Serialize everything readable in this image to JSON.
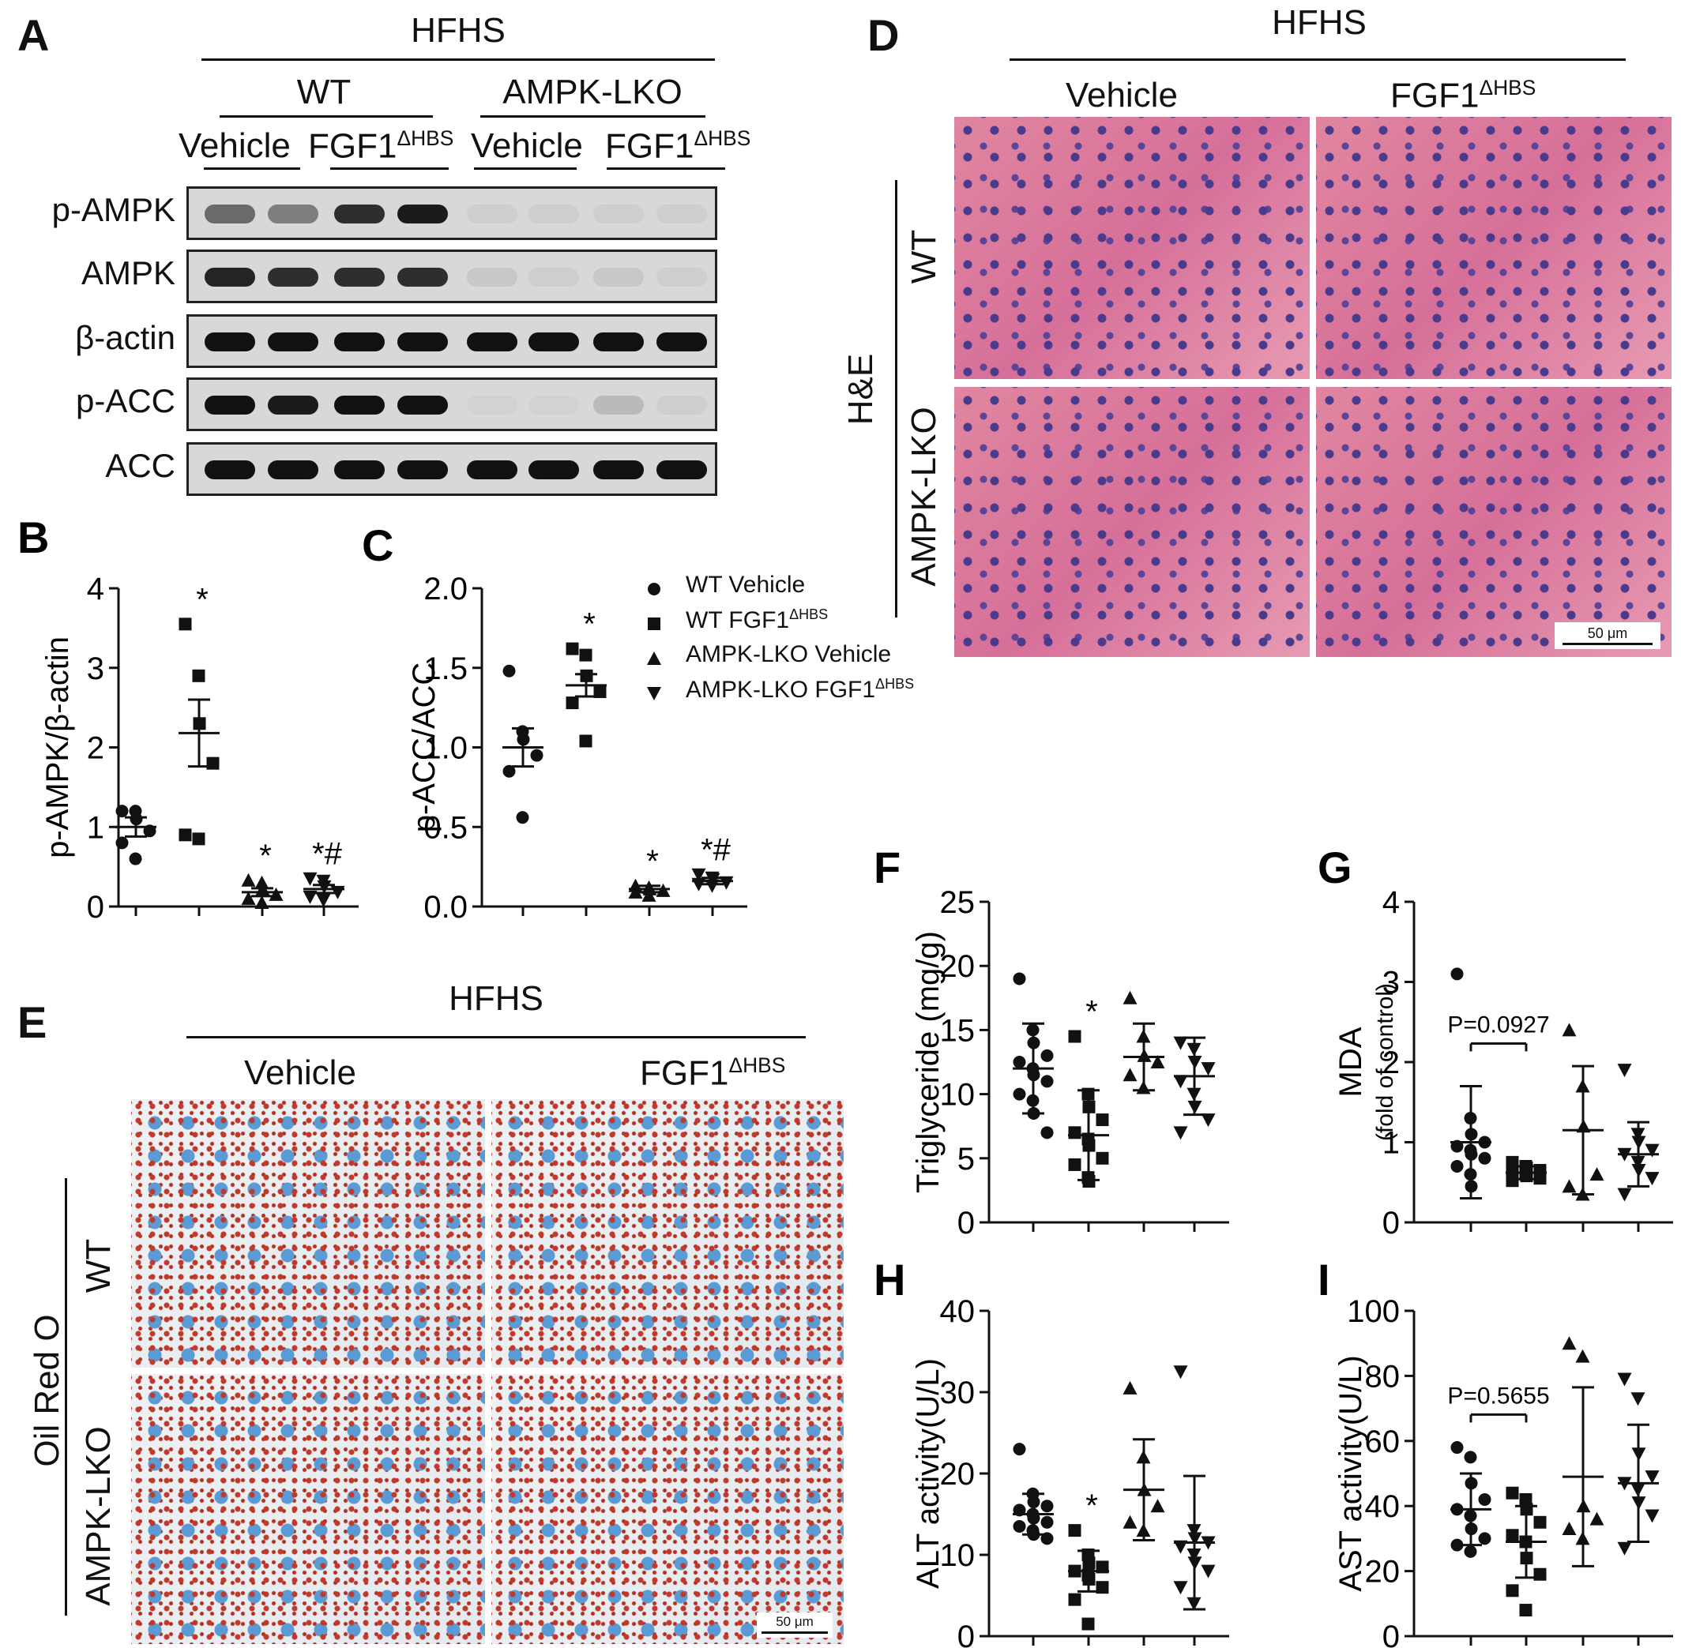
{
  "panel_a": {
    "letter": "A",
    "header": "HFHS",
    "group_wt": "WT",
    "group_lko": "AMPK-LKO",
    "treat_vehicle": "Vehicle",
    "treat_fgf1": "FGF1",
    "treat_fgf1_sup": "ΔHBS",
    "rows": [
      "p-AMPK",
      "AMPK",
      "β-actin",
      "p-ACC",
      "ACC"
    ],
    "band_intensity": [
      [
        0.55,
        0.45,
        0.85,
        0.95,
        0.05,
        0.05,
        0.05,
        0.05
      ],
      [
        0.9,
        0.85,
        0.85,
        0.85,
        0.08,
        0.05,
        0.08,
        0.05
      ],
      [
        1,
        1,
        1,
        1,
        1,
        1,
        1,
        1
      ],
      [
        1,
        0.95,
        1,
        1,
        0.03,
        0.03,
        0.15,
        0.05
      ],
      [
        1,
        1,
        1,
        1,
        1,
        1,
        1,
        1
      ]
    ]
  },
  "panel_d": {
    "letter": "D",
    "header": "HFHS",
    "col_vehicle": "Vehicle",
    "col_fgf1": "FGF1",
    "col_fgf1_sup": "ΔHBS",
    "stain": "H&E",
    "row_wt": "WT",
    "row_lko": "AMPK-LKO",
    "scale": "50 μm"
  },
  "panel_e": {
    "letter": "E",
    "header": "HFHS",
    "col_vehicle": "Vehicle",
    "col_fgf1": "FGF1",
    "col_fgf1_sup": "ΔHBS",
    "stain": "Oil Red O",
    "row_wt": "WT",
    "row_lko": "AMPK-LKO",
    "scale": "50 μm"
  },
  "legend": {
    "items": [
      {
        "marker": "circle",
        "label": "WT Vehicle",
        "sup": ""
      },
      {
        "marker": "square",
        "label": "WT FGF1",
        "sup": "ΔHBS"
      },
      {
        "marker": "triangle-up",
        "label": "AMPK-LKO Vehicle",
        "sup": ""
      },
      {
        "marker": "triangle-down",
        "label": "AMPK-LKO FGF1",
        "sup": "ΔHBS"
      }
    ]
  },
  "chart_data": [
    {
      "panel": "B",
      "type": "scatter",
      "ylabel": "p-AMPK/β-actin",
      "ylim": [
        0,
        4
      ],
      "yticks": [
        "0",
        "1",
        "2",
        "3",
        "4"
      ],
      "groups": [
        {
          "marker": "circle",
          "mean": 1.0,
          "err": 0.12,
          "points": [
            1.2,
            1.2,
            1.1,
            0.95,
            0.8,
            0.6
          ],
          "mark": ""
        },
        {
          "marker": "square",
          "mean": 2.18,
          "err": 0.42,
          "points": [
            3.55,
            2.9,
            2.3,
            1.8,
            0.9,
            0.85
          ],
          "mark": "*"
        },
        {
          "marker": "triangle-up",
          "mean": 0.18,
          "err": 0.05,
          "points": [
            0.33,
            0.3,
            0.22,
            0.15,
            0.1,
            0.05
          ],
          "mark": "*"
        },
        {
          "marker": "triangle-down",
          "mean": 0.22,
          "err": 0.05,
          "points": [
            0.35,
            0.32,
            0.25,
            0.18,
            0.12,
            0.08
          ],
          "mark": "*#"
        }
      ]
    },
    {
      "panel": "C",
      "type": "scatter",
      "ylabel": "p-ACC/ACC",
      "ylim": [
        0,
        2.0
      ],
      "yticks": [
        "0.0",
        "0.5",
        "1.0",
        "1.5",
        "2.0"
      ],
      "groups": [
        {
          "marker": "circle",
          "mean": 1.0,
          "err": 0.12,
          "points": [
            1.48,
            1.1,
            1.05,
            0.95,
            0.85,
            0.56
          ],
          "mark": ""
        },
        {
          "marker": "square",
          "mean": 1.39,
          "err": 0.07,
          "points": [
            1.62,
            1.58,
            1.45,
            1.35,
            1.28,
            1.04
          ],
          "mark": "*"
        },
        {
          "marker": "triangle-up",
          "mean": 0.11,
          "err": 0.02,
          "points": [
            0.13,
            0.12,
            0.11,
            0.1,
            0.09,
            0.07
          ],
          "mark": "*"
        },
        {
          "marker": "triangle-down",
          "mean": 0.16,
          "err": 0.02,
          "points": [
            0.2,
            0.18,
            0.17,
            0.15,
            0.14,
            0.13
          ],
          "mark": "*#"
        }
      ]
    },
    {
      "panel": "F",
      "type": "scatter",
      "ylabel": "Triglyceride (mg/g)",
      "ylim": [
        0,
        25
      ],
      "yticks": [
        "0",
        "5",
        "10",
        "15",
        "20",
        "25"
      ],
      "groups": [
        {
          "marker": "circle",
          "mean": 12.0,
          "err": 3.5,
          "points": [
            19.0,
            15.0,
            14.0,
            13.0,
            12.5,
            12.0,
            11.5,
            11.0,
            10.0,
            9.5,
            8.5,
            7.0
          ],
          "mark": ""
        },
        {
          "marker": "square",
          "mean": 6.8,
          "err": 3.5,
          "points": [
            14.5,
            10.0,
            9.0,
            8.0,
            7.0,
            6.5,
            6.0,
            5.0,
            4.5,
            3.5,
            3.2
          ],
          "mark": "*"
        },
        {
          "marker": "triangle-up",
          "mean": 12.9,
          "err": 2.6,
          "points": [
            17.5,
            14.5,
            13.0,
            12.5,
            11.5,
            10.5
          ],
          "mark": ""
        },
        {
          "marker": "triangle-down",
          "mean": 11.4,
          "err": 3.0,
          "points": [
            14.0,
            13.5,
            12.5,
            12.0,
            11.0,
            10.0,
            9.0,
            8.0,
            7.0
          ],
          "mark": ""
        }
      ]
    },
    {
      "panel": "G",
      "type": "scatter",
      "ylabel": "MDA",
      "ylabel2": "(fold of control)",
      "ylim": [
        0,
        4
      ],
      "yticks": [
        "0",
        "1",
        "2",
        "3",
        "4"
      ],
      "annotation": "P=0.0927",
      "groups": [
        {
          "marker": "circle",
          "mean": 1.0,
          "err": 0.7,
          "points": [
            3.1,
            1.3,
            1.1,
            1.0,
            0.95,
            0.9,
            0.85,
            0.8,
            0.7,
            0.6,
            0.45
          ],
          "mark": ""
        },
        {
          "marker": "square",
          "mean": 0.62,
          "err": 0.08,
          "points": [
            0.75,
            0.7,
            0.68,
            0.65,
            0.62,
            0.6,
            0.58,
            0.55,
            0.52
          ],
          "mark": ""
        },
        {
          "marker": "triangle-up",
          "mean": 1.15,
          "err": 0.8,
          "points": [
            2.4,
            1.7,
            1.2,
            0.6,
            0.45,
            0.35
          ],
          "mark": ""
        },
        {
          "marker": "triangle-down",
          "mean": 0.85,
          "err": 0.4,
          "points": [
            1.9,
            1.1,
            1.0,
            0.9,
            0.85,
            0.75,
            0.65,
            0.55,
            0.35
          ],
          "mark": ""
        }
      ]
    },
    {
      "panel": "H",
      "type": "scatter",
      "ylabel": "ALT activity(U/L)",
      "ylim": [
        0,
        40
      ],
      "yticks": [
        "0",
        "10",
        "20",
        "30",
        "40"
      ],
      "groups": [
        {
          "marker": "circle",
          "mean": 15.0,
          "err": 2.5,
          "points": [
            23.0,
            17.5,
            16.5,
            16.0,
            15.5,
            15.0,
            14.5,
            14.0,
            13.5,
            13.0,
            12.5,
            12.0
          ],
          "mark": ""
        },
        {
          "marker": "square",
          "mean": 8.0,
          "err": 2.5,
          "points": [
            13.0,
            10.0,
            9.0,
            8.5,
            8.0,
            7.5,
            7.0,
            6.0,
            4.5,
            1.5
          ],
          "mark": "*"
        },
        {
          "marker": "triangle-up",
          "mean": 18.0,
          "err": 6.2,
          "points": [
            30.5,
            22.0,
            18.0,
            16.0,
            14.0,
            13.0
          ],
          "mark": ""
        },
        {
          "marker": "triangle-down",
          "mean": 11.5,
          "err": 8.2,
          "points": [
            32.5,
            13.0,
            12.0,
            11.5,
            11.0,
            10.0,
            9.0,
            8.0,
            6.0,
            4.0
          ],
          "mark": ""
        }
      ]
    },
    {
      "panel": "I",
      "type": "scatter",
      "ylabel": "AST activity(U/L)",
      "ylim": [
        0,
        100
      ],
      "yticks": [
        "0",
        "20",
        "40",
        "60",
        "80",
        "100"
      ],
      "annotation": "P=0.5655",
      "groups": [
        {
          "marker": "circle",
          "mean": 39.0,
          "err": 11.0,
          "points": [
            58.0,
            55.0,
            47.0,
            42.0,
            39.0,
            37.0,
            33.0,
            30.0,
            28.0,
            26.0
          ],
          "mark": ""
        },
        {
          "marker": "square",
          "mean": 29.0,
          "err": 11.0,
          "points": [
            44.0,
            42.0,
            39.0,
            35.0,
            31.0,
            29.0,
            24.0,
            19.0,
            14.0,
            8.0
          ],
          "mark": ""
        },
        {
          "marker": "triangle-up",
          "mean": 49.0,
          "err": 27.5,
          "points": [
            90.0,
            86.0,
            40.0,
            36.0,
            33.0,
            30.0
          ],
          "mark": ""
        },
        {
          "marker": "triangle-down",
          "mean": 47.0,
          "err": 18.0,
          "points": [
            79.0,
            73.0,
            56.0,
            49.0,
            47.0,
            45.0,
            41.0,
            37.0,
            27.0
          ],
          "mark": ""
        }
      ]
    }
  ]
}
